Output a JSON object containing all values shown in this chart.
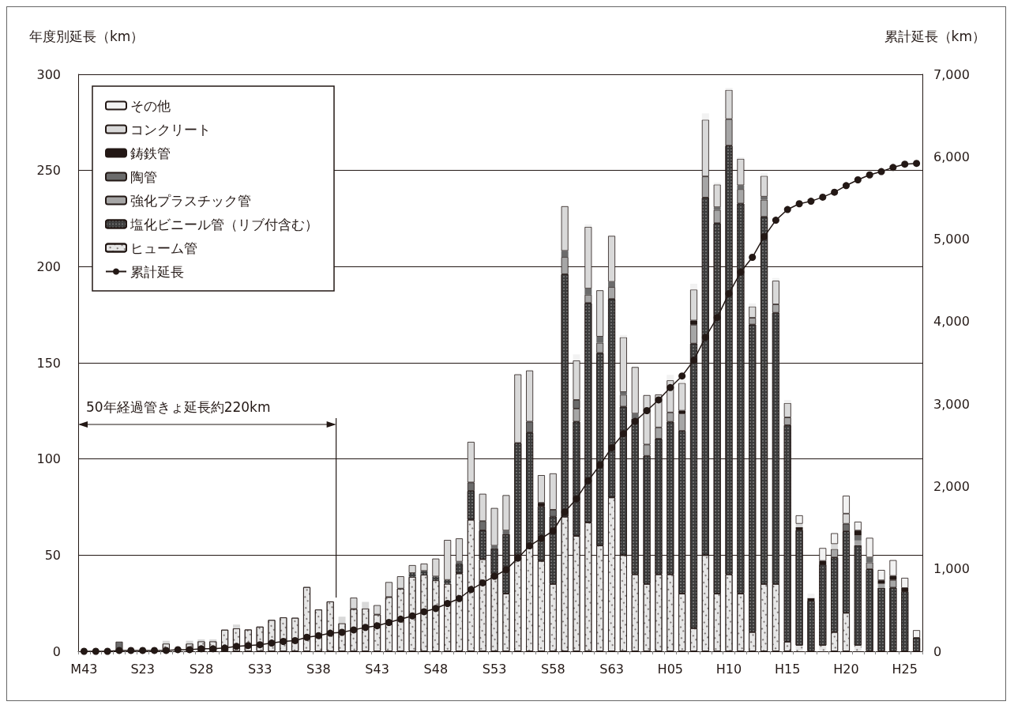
{
  "chart_data": {
    "type": "bar",
    "stacked": true,
    "ylabel": "年度別延長（km）",
    "y2label": "累計延長（km）",
    "annotations": [
      "50年経過管きょ延長約220km"
    ],
    "categories": [
      "M43",
      null,
      null,
      null,
      null,
      "S23",
      null,
      null,
      null,
      null,
      "S28",
      null,
      null,
      null,
      null,
      "S33",
      null,
      null,
      null,
      null,
      "S38",
      null,
      null,
      null,
      null,
      "S43",
      null,
      null,
      null,
      null,
      "S48",
      null,
      null,
      null,
      null,
      "S53",
      null,
      null,
      null,
      null,
      "S58",
      null,
      null,
      null,
      null,
      "S63",
      null,
      null,
      null,
      null,
      "H05",
      null,
      null,
      null,
      null,
      "H10",
      null,
      null,
      null,
      null,
      "H15",
      null,
      null,
      null,
      null,
      "H20",
      null,
      null,
      null,
      null,
      "H25",
      null
    ],
    "series": [
      {
        "name": "ヒューム管",
        "color": "#e6e6e6",
        "values": [
          0,
          0,
          0,
          null,
          0,
          0,
          0,
          4,
          null,
          4,
          5.2,
          5.2,
          11.2,
          11.9,
          11.3,
          12.8,
          16.3,
          17.6,
          17.4,
          33.4,
          21.7,
          25.9,
          14.6,
          22,
          22.3,
          19.1,
          28.2,
          32.6,
          38.7,
          39.8,
          36.9,
          35.1,
          40.5,
          68.4,
          47.9,
          40,
          30,
          50,
          55,
          47,
          35,
          70,
          60,
          67,
          55,
          80,
          50,
          40,
          35,
          40,
          40,
          30,
          12,
          50,
          30,
          40,
          30,
          10,
          35,
          35,
          5,
          3,
          0,
          3,
          10,
          20,
          3,
          0,
          0,
          0,
          0,
          0
        ]
      },
      {
        "name": "塩化ビニール管（リブ付含む）",
        "color": "#3c3c3c",
        "values": [
          0,
          0,
          0,
          0,
          0,
          0,
          0,
          0,
          0,
          0,
          0,
          0,
          0,
          0,
          0,
          0,
          0,
          0,
          0,
          0,
          0,
          0,
          0,
          0,
          0,
          0,
          0,
          0,
          2,
          2,
          2,
          2,
          5,
          15,
          15,
          13.5,
          31,
          58.3,
          58.7,
          28.4,
          35,
          126.1,
          59.4,
          114.1,
          100.1,
          103.2,
          77.2,
          80.9,
          66.6,
          70.5,
          79.3,
          84.6,
          148,
          185.9,
          192.6,
          222.9,
          202.8,
          159.9,
          190.9,
          141,
          112.6,
          60.1,
          26.3,
          42.2,
          38.8,
          42.4,
          52.1,
          42.7,
          33,
          33.1,
          31.1,
          7
        ]
      },
      {
        "name": "強化プラスチック管",
        "color": "#a6a6a6",
        "values": [
          0,
          0,
          0,
          0,
          0,
          0,
          0,
          0,
          0,
          0,
          0,
          0,
          0,
          0,
          0,
          0,
          0,
          0,
          0,
          0,
          0,
          0,
          0,
          0,
          0,
          0,
          0,
          0,
          0,
          0,
          0,
          0,
          0,
          0,
          0,
          0,
          0,
          0,
          0,
          0,
          0,
          8.9,
          6.8,
          4.3,
          5.3,
          6.2,
          6.2,
          0,
          5.9,
          5.9,
          4.9,
          9.1,
          9.8,
          11,
          6.9,
          13.8,
          7.5,
          3.5,
          8.9,
          4.4,
          4,
          0,
          0,
          0,
          4.4,
          0,
          2.5,
          3.5,
          2.1,
          4,
          0,
          0
        ]
      },
      {
        "name": "陶管",
        "color": "#6b6b6b",
        "values": [
          0,
          0,
          0,
          5,
          0,
          0,
          0,
          0,
          0,
          0,
          0,
          0,
          0,
          0,
          0,
          0,
          0,
          0,
          0,
          0,
          0,
          0,
          0,
          0,
          0,
          0,
          0,
          0,
          0,
          0,
          0,
          0,
          1.1,
          4.4,
          4.8,
          1.4,
          1.8,
          0,
          5.7,
          0,
          3.6,
          3.2,
          4.5,
          3.2,
          3.2,
          2.7,
          1.4,
          2.7,
          0,
          0,
          0,
          0,
          0,
          0,
          1.4,
          0,
          2,
          0,
          1.6,
          0,
          0,
          0,
          0,
          0,
          0,
          3.9,
          2.6,
          2.6,
          0,
          0,
          0,
          0
        ]
      },
      {
        "name": "鋳鉄管",
        "color": "#231815",
        "values": [
          0,
          0,
          0,
          0,
          0,
          0,
          0,
          0,
          0,
          0,
          0,
          0,
          0,
          0,
          0,
          0,
          0,
          0,
          0,
          0,
          0,
          0,
          0,
          0,
          0,
          0,
          0,
          0,
          0,
          0,
          0,
          0,
          0,
          0,
          0,
          0,
          0,
          0,
          0,
          1.8,
          0,
          0,
          0,
          0,
          0,
          0,
          0,
          0,
          0,
          0,
          0,
          1.4,
          2.2,
          0,
          0,
          0,
          0,
          0,
          0,
          0,
          0,
          1.4,
          1.4,
          1.8,
          0,
          0,
          2.6,
          0,
          1.8,
          2.1,
          1.8,
          0
        ]
      },
      {
        "name": "コンクリート",
        "color": "#d9d9d9",
        "values": [
          0,
          0,
          0,
          0,
          0,
          0,
          0,
          1.5,
          0,
          1.5,
          1,
          1,
          0,
          2,
          0,
          0,
          0,
          0,
          0,
          0,
          0,
          0,
          3.4,
          5.9,
          3.4,
          4.9,
          7.8,
          6.4,
          4.1,
          3.8,
          9.3,
          20.8,
          12.1,
          21.1,
          14.2,
          19.6,
          18.4,
          35.7,
          26.6,
          14.4,
          18.9,
          23.2,
          20.5,
          32.1,
          24.1,
          23.9,
          28.5,
          24.2,
          25.7,
          17.1,
          16.7,
          14.4,
          16.1,
          29.5,
          11.8,
          15.2,
          13.8,
          5.9,
          10.8,
          12.3,
          7.5,
          1.8,
          0,
          0,
          2.6,
          5.3,
          0,
          0,
          0,
          0,
          0,
          0
        ]
      },
      {
        "name": "その他",
        "color": "#f2f2f2",
        "values": [
          0,
          0,
          0,
          0,
          0,
          0,
          0,
          0,
          0,
          0,
          0,
          0,
          0,
          0,
          0,
          0,
          0,
          0,
          0,
          0,
          0,
          0,
          0,
          0,
          0,
          0,
          0,
          0,
          0,
          0,
          0,
          0,
          0,
          0,
          0,
          0,
          0,
          0,
          0,
          0,
          0,
          0,
          3.2,
          1.2,
          0,
          0,
          1.2,
          0,
          0,
          0,
          2.8,
          2,
          3,
          3.3,
          1,
          1,
          0.8,
          1.6,
          1.4,
          1.4,
          1.6,
          4.4,
          2.3,
          6.7,
          5.6,
          9.3,
          4.6,
          10.2,
          5.4,
          8.2,
          5.3,
          4
        ]
      },
      {
        "name": "累計延長",
        "type": "line",
        "axis": "y2",
        "color": "#231815",
        "marker": "circle",
        "line_style": "solid",
        "values": [
          0,
          0,
          0,
          10,
          10,
          10,
          10,
          10,
          20,
          20,
          30,
          30,
          40,
          60,
          70,
          80,
          100,
          120,
          130,
          170,
          190,
          220,
          230,
          260,
          290,
          310,
          350,
          390,
          430,
          480,
          520,
          580,
          640,
          750,
          830,
          910,
          990,
          1130,
          1280,
          1370,
          1460,
          1690,
          1850,
          2070,
          2260,
          2470,
          2640,
          2790,
          2920,
          3050,
          3200,
          3340,
          3530,
          3810,
          4050,
          4340,
          4600,
          4780,
          5030,
          5230,
          5360,
          5430,
          5460,
          5510,
          5570,
          5650,
          5720,
          5780,
          5820,
          5870,
          5910,
          5920
        ]
      }
    ],
    "ylim": [
      0,
      300
    ],
    "yticks": [
      0,
      50,
      100,
      150,
      200,
      250,
      300
    ],
    "y2lim": [
      0,
      7000
    ],
    "y2ticks": [
      0,
      {
        "value": 1000,
        "label": "1,000"
      },
      {
        "value": 2000,
        "label": "2,000"
      },
      {
        "value": 3000,
        "label": "3,000"
      },
      {
        "value": 4000,
        "label": "4,000"
      },
      {
        "value": 5000,
        "label": "5,000"
      },
      {
        "value": 6000,
        "label": "6,000"
      },
      {
        "value": 7000,
        "label": "7,000"
      }
    ],
    "grid": "y",
    "legend": "top left"
  }
}
